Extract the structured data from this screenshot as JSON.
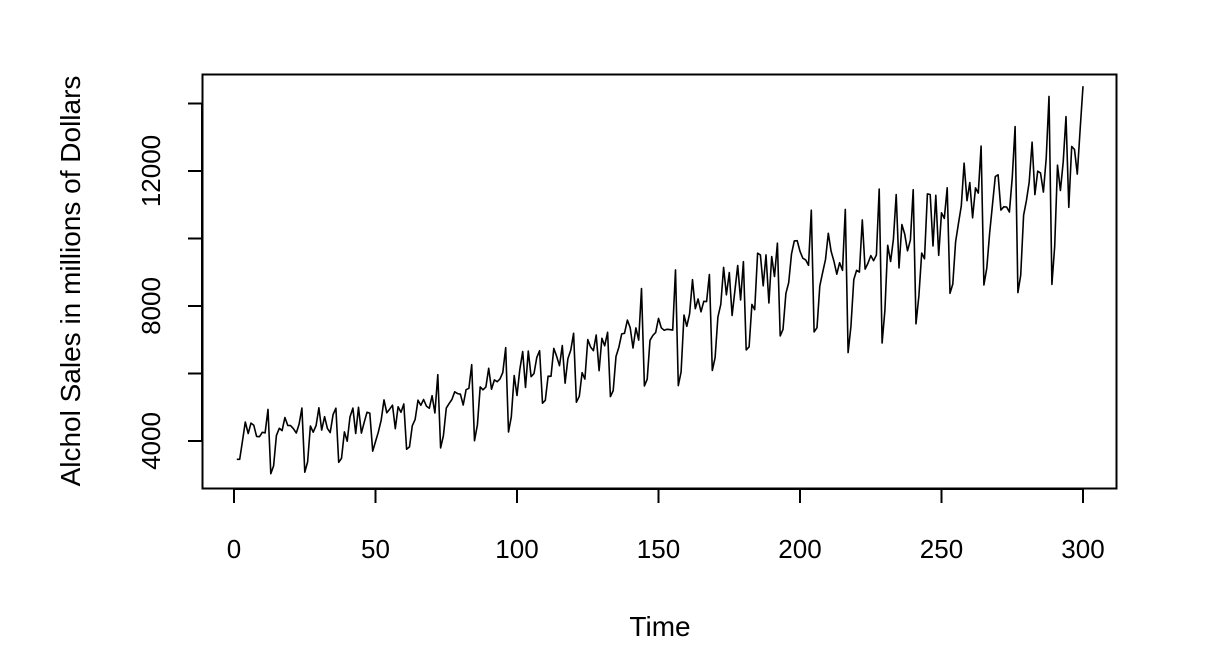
{
  "chart_data": {
    "type": "line",
    "title": "",
    "xlabel": "Time",
    "ylabel": "Alchol Sales in millions of Dollars",
    "xlim": [
      0,
      300
    ],
    "ylim": [
      3000,
      14400
    ],
    "x_ticks": [
      0,
      50,
      100,
      150,
      200,
      250,
      300
    ],
    "y_ticks": [
      4000,
      8000,
      12000
    ],
    "grid": false,
    "legend": "none",
    "line_color": "#000000",
    "x": [
      1,
      2,
      3,
      4,
      5,
      6,
      7,
      8,
      9,
      10,
      11,
      12,
      13,
      14,
      15,
      16,
      17,
      18,
      19,
      20,
      21,
      22,
      23,
      24,
      25,
      26,
      27,
      28,
      29,
      30,
      31,
      32,
      33,
      34,
      35,
      36,
      37,
      38,
      39,
      40,
      41,
      42,
      43,
      44,
      45,
      46,
      47,
      48,
      49,
      50,
      51,
      52,
      53,
      54,
      55,
      56,
      57,
      58,
      59,
      60,
      61,
      62,
      63,
      64,
      65,
      66,
      67,
      68,
      69,
      70,
      71,
      72,
      73,
      74,
      75,
      76,
      77,
      78,
      79,
      80,
      81,
      82,
      83,
      84,
      85,
      86,
      87,
      88,
      89,
      90,
      91,
      92,
      93,
      94,
      95,
      96,
      97,
      98,
      99,
      100,
      101,
      102,
      103,
      104,
      105,
      106,
      107,
      108,
      109,
      110,
      111,
      112,
      113,
      114,
      115,
      116,
      117,
      118,
      119,
      120,
      121,
      122,
      123,
      124,
      125,
      126,
      127,
      128,
      129,
      130,
      131,
      132,
      133,
      134,
      135,
      136,
      137,
      138,
      139,
      140,
      141,
      142,
      143,
      144,
      145,
      146,
      147,
      148,
      149,
      150,
      151,
      152,
      153,
      154,
      155,
      156,
      157,
      158,
      159,
      160,
      161,
      162,
      163,
      164,
      165,
      166,
      167,
      168,
      169,
      170,
      171,
      172,
      173,
      174,
      175,
      176,
      177,
      178,
      179,
      180,
      181,
      182,
      183,
      184,
      185,
      186,
      187,
      188,
      189,
      190,
      191,
      192,
      193,
      194,
      195,
      196,
      197,
      198,
      199,
      200,
      201,
      202,
      203,
      204,
      205,
      206,
      207,
      208,
      209,
      210,
      211,
      212,
      213,
      214,
      215,
      216,
      217,
      218,
      219,
      220,
      221,
      222,
      223,
      224,
      225,
      226,
      227,
      228,
      229,
      230,
      231,
      232,
      233,
      234,
      235,
      236,
      237,
      238,
      239,
      240,
      241,
      242,
      243,
      244,
      245,
      246,
      247,
      248,
      249,
      250,
      251,
      252,
      253,
      254,
      255,
      256,
      257,
      258,
      259,
      260,
      261,
      262,
      263,
      264,
      265,
      266,
      267,
      268,
      269,
      270,
      271,
      272,
      273,
      274,
      275,
      276,
      277,
      278,
      279,
      280,
      281,
      282,
      283,
      284,
      285,
      286,
      287,
      288,
      289,
      290,
      291,
      292,
      293,
      294,
      295,
      296,
      297,
      298,
      299,
      300
    ],
    "values": [
      3459,
      3458,
      4002,
      4564,
      4221,
      4529,
      4466,
      4137,
      4126,
      4259,
      4240,
      4936,
      3031,
      3261,
      4160,
      4377,
      4307,
      4696,
      4458,
      4457,
      4364,
      4236,
      4500,
      4974,
      3075,
      3377,
      4443,
      4261,
      4460,
      4985,
      4324,
      4719,
      4374,
      4248,
      4784,
      4971,
      3370,
      3484,
      4269,
      3994,
      4715,
      4974,
      4223,
      5000,
      4235,
      4554,
      4851,
      4826,
      3699,
      3983,
      4262,
      4619,
      5219,
      4836,
      4941,
      5062,
      4365,
      5012,
      4850,
      5097,
      3758,
      3825,
      4454,
      4635,
      5210,
      5057,
      5231,
      5034,
      4970,
      5342,
      4831,
      5965,
      3796,
      4156,
      4976,
      5107,
      5231,
      5457,
      5405,
      5388,
      5068,
      5519,
      5562,
      6261,
      4009,
      4478,
      5604,
      5517,
      5602,
      6155,
      5534,
      5809,
      5757,
      5841,
      6030,
      6764,
      4268,
      4716,
      5938,
      5347,
      6116,
      6652,
      5584,
      6667,
      5906,
      6000,
      6476,
      6675,
      5121,
      5206,
      5919,
      5918,
      6743,
      6512,
      6230,
      6828,
      5712,
      6438,
      6695,
      7191,
      5151,
      5324,
      6024,
      5834,
      7003,
      6786,
      6675,
      7140,
      6084,
      7043,
      6820,
      7222,
      5317,
      5493,
      6503,
      6783,
      7173,
      7190,
      7581,
      7356,
      6757,
      7352,
      6990,
      8518,
      5629,
      5831,
      6983,
      7126,
      7218,
      7632,
      7353,
      7281,
      7311,
      7302,
      7285,
      9071,
      5642,
      6051,
      7730,
      7398,
      7770,
      8778,
      7919,
      8207,
      7829,
      8139,
      8129,
      8934,
      6090,
      6469,
      7671,
      8050,
      9145,
      8331,
      8989,
      7719,
      8455,
      9200,
      8178,
      9313,
      6700,
      6790,
      8047,
      7889,
      9565,
      9514,
      8599,
      9513,
      8088,
      9468,
      8874,
      9861,
      7115,
      7306,
      8372,
      8692,
      9541,
      9929,
      9935,
      9622,
      9416,
      9365,
      9205,
      10839,
      7232,
      7356,
      8593,
      8987,
      9378,
      10155,
      9624,
      9319,
      8941,
      9284,
      9056,
      10863,
      6620,
      7386,
      8783,
      9058,
      9004,
      10550,
      9092,
      9261,
      9494,
      9341,
      9512,
      11466,
      6905,
      7869,
      9800,
      9318,
      9976,
      11303,
      9130,
      10413,
      10134,
      9637,
      9954,
      11445,
      7474,
      8306,
      9571,
      9400,
      11320,
      11304,
      9781,
      11280,
      9502,
      10760,
      10597,
      11503,
      8376,
      8651,
      9898,
      10452,
      10965,
      12230,
      11120,
      11659,
      10614,
      11498,
      11344,
      12737,
      8621,
      9127,
      10145,
      10980,
      11836,
      11888,
      10842,
      10939,
      10934,
      10784,
      11827,
      13317,
      8398,
      8910,
      10688,
      11124,
      11672,
      12854,
      11301,
      11993,
      11944,
      11375,
      12376,
      14209,
      8639,
      9771,
      12172,
      11422,
      12263,
      13611,
      10924,
      12729,
      12637,
      11909,
      13258,
      14512
    ]
  }
}
